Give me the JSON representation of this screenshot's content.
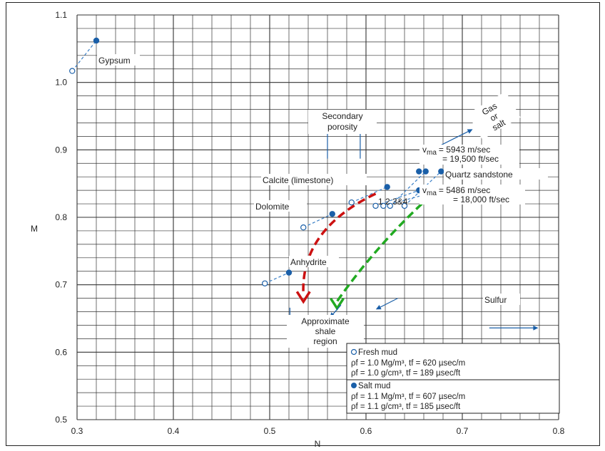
{
  "chart_data": {
    "type": "scatter",
    "xlabel": "N",
    "ylabel": "M",
    "xlim": [
      0.3,
      0.8
    ],
    "ylim": [
      0.5,
      1.1
    ],
    "x_ticks": [
      "0.3",
      "0.4",
      "0.5",
      "0.6",
      "0.7",
      "0.8"
    ],
    "y_ticks": [
      "0.5",
      "0.6",
      "0.7",
      "0.8",
      "0.9",
      "1.0",
      "1.1"
    ],
    "grid": true,
    "minerals": [
      {
        "name": "Gypsum",
        "fresh": [
          0.295,
          1.017
        ],
        "salt": [
          0.32,
          1.062
        ]
      },
      {
        "name": "Anhydrite",
        "fresh": [
          0.495,
          0.702
        ],
        "salt": [
          0.52,
          0.718
        ]
      },
      {
        "name": "Dolomite",
        "fresh": [
          0.535,
          0.785
        ],
        "salt": [
          0.565,
          0.805
        ]
      },
      {
        "name": "Calcite (limestone)",
        "fresh": [
          0.585,
          0.822
        ],
        "salt": [
          0.622,
          0.845
        ]
      },
      {
        "name": "Quartz sandstone v=5943",
        "fresh": [
          0.625,
          0.817
        ],
        "salt": [
          0.662,
          0.868
        ]
      },
      {
        "name": "Quartz sandstone v=5486",
        "fresh": [
          0.64,
          0.817
        ],
        "salt": [
          0.678,
          0.868
        ]
      }
    ],
    "extra_fresh_points": [
      [
        0.618,
        0.817
      ],
      [
        0.61,
        0.817
      ]
    ],
    "extra_salt_points": [
      [
        0.655,
        0.868
      ],
      [
        0.655,
        0.84
      ],
      [
        0.663,
        0.84
      ],
      [
        0.678,
        0.84
      ]
    ],
    "annotations": {
      "gypsum": "Gypsum",
      "secondary_porosity": [
        "Secondary",
        "porosity"
      ],
      "gas_or_salt": [
        "Gas",
        "or",
        "salt"
      ],
      "vma_1_line1": "= 5943 m/sec",
      "vma_1_line2": "= 19,500 ft/sec",
      "vma_2_line1": "= 5486 m/sec",
      "vma_2_line2": "= 18,000 ft/sec",
      "vma_symbol": "v",
      "vma_sub": "ma",
      "calcite": "Calcite (limestone)",
      "quartz": "Quartz sandstone",
      "dolomite": "Dolomite",
      "numbers": "1 2 3&4",
      "anhydrite": "Anhydrite",
      "sulfur": "Sulfur",
      "shale": [
        "Approximate",
        "shale",
        "region"
      ]
    },
    "legend": {
      "fresh_title": "Fresh mud",
      "fresh_line1": "ρf = 1.0 Mg/m³, tf = 620 µsec/m",
      "fresh_line2": "ρf = 1.0 g/cm³, tf = 189 µsec/ft",
      "salt_title": "Salt mud",
      "salt_line1": "ρf = 1.1 Mg/m³, tf = 607 µsec/m",
      "salt_line2": "ρf = 1.1 g/cm³, tf = 185 µsec/ft",
      "placement": "bottom-right"
    },
    "trend_arrows": [
      {
        "color": "#cc1111",
        "from": [
          0.61,
          0.835
        ],
        "to": [
          0.535,
          0.675
        ]
      },
      {
        "color": "#22aa22",
        "from": [
          0.658,
          0.82
        ],
        "to": [
          0.57,
          0.665
        ]
      }
    ],
    "colors": {
      "marker": "#1a5fa8",
      "dash": "#3a7fc6",
      "red_arrow": "#cc1111",
      "green_arrow": "#22aa22",
      "grid": "#333333"
    }
  }
}
